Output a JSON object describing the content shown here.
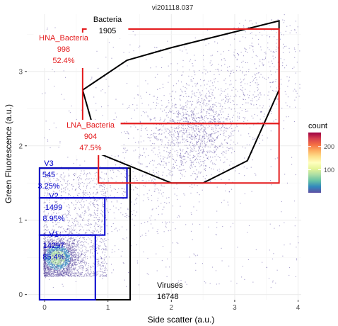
{
  "chart_data": {
    "type": "scatter",
    "title": "vi201118.037",
    "xlabel": "Side scatter (a.u.)",
    "ylabel": "Green Fluorescence (a.u.)",
    "xlim": [
      -0.28,
      4.05
    ],
    "ylim": [
      -0.07,
      3.77
    ],
    "x_ticks": [
      0,
      1,
      2,
      3,
      4
    ],
    "y_ticks": [
      0,
      1,
      2,
      3
    ],
    "grid": true,
    "legend": {
      "title": "count",
      "ticks": [
        100,
        200
      ],
      "range": [
        1,
        260
      ],
      "placement": "right",
      "colors": [
        "#5e4fa2",
        "#3288bd",
        "#66c2a5",
        "#abdda4",
        "#e6f598",
        "#ffffbf",
        "#fee08b",
        "#fdae61",
        "#f46d43",
        "#d53e4f",
        "#9e0142"
      ]
    },
    "gates": [
      {
        "label": "Viruses",
        "count": "16748",
        "percent": "",
        "color": "#000000",
        "shape": "rect",
        "x": [
          -0.08,
          1.35
        ],
        "y": [
          -0.07,
          1.7
        ]
      },
      {
        "label": "V1",
        "count": "14297",
        "percent": "85.4%",
        "color": "#0000cc",
        "shape": "rect",
        "x": [
          -0.08,
          0.8
        ],
        "y": [
          -0.07,
          0.8
        ]
      },
      {
        "label": "V2",
        "count": "1499",
        "percent": "8.95%",
        "color": "#0000cc",
        "shape": "rect",
        "x": [
          -0.08,
          0.95
        ],
        "y": [
          0.8,
          1.3
        ]
      },
      {
        "label": "V3",
        "count": "545",
        "percent": "3.25%",
        "color": "#0000cc",
        "shape": "rect",
        "x": [
          -0.08,
          1.3
        ],
        "y": [
          1.3,
          1.7
        ]
      },
      {
        "label": "Bacteria",
        "count": "1905",
        "percent": "",
        "color": "#000000",
        "shape": "polygon",
        "points": [
          [
            0.6,
            2.75
          ],
          [
            1.3,
            3.15
          ],
          [
            2.0,
            3.32
          ],
          [
            3.7,
            3.68
          ],
          [
            3.7,
            2.75
          ],
          [
            3.2,
            1.8
          ],
          [
            2.5,
            1.5
          ],
          [
            2.0,
            1.5
          ],
          [
            0.85,
            1.9
          ],
          [
            0.75,
            2.3
          ],
          [
            0.6,
            2.75
          ]
        ]
      },
      {
        "label": "HNA_Bacteria",
        "count": "998",
        "percent": "52.4%",
        "color": "#e41a1c",
        "shape": "rect",
        "x": [
          0.6,
          3.7
        ],
        "y": [
          2.3,
          3.57
        ]
      },
      {
        "label": "LNA_Bacteria",
        "count": "904",
        "percent": "47.5%",
        "color": "#e41a1c",
        "shape": "rect",
        "x": [
          0.85,
          3.7
        ],
        "y": [
          1.5,
          2.3
        ]
      }
    ]
  }
}
